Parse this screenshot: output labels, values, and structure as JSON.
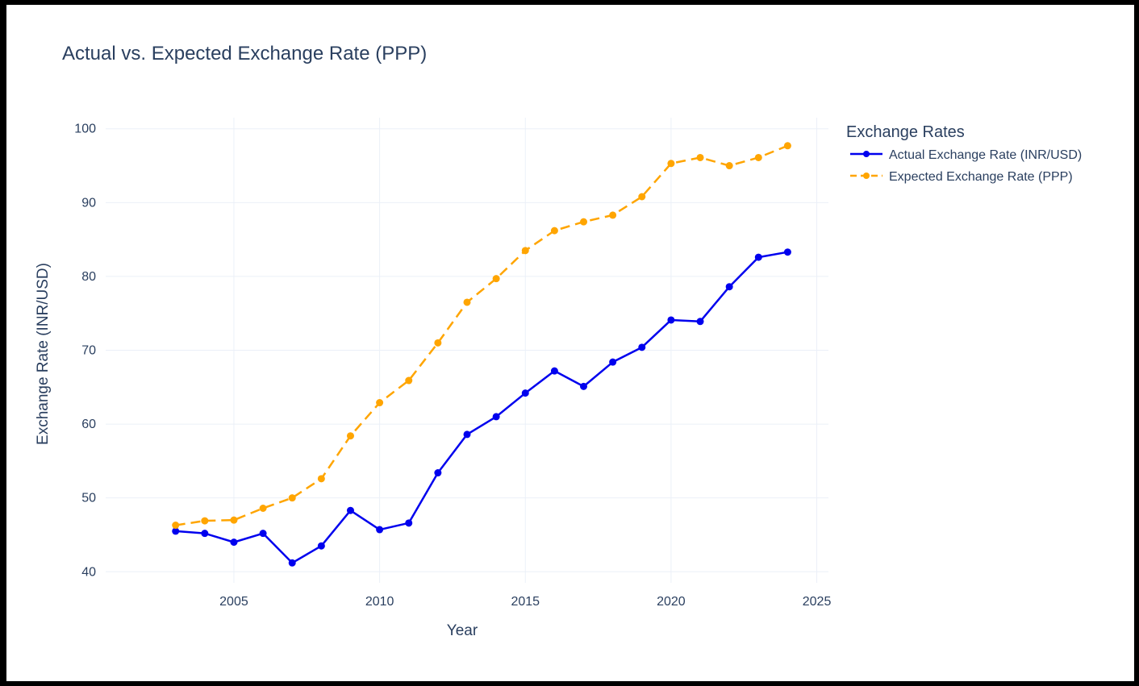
{
  "chart_data": {
    "type": "line",
    "title": "Actual vs. Expected Exchange Rate (PPP)",
    "xlabel": "Year",
    "ylabel": "Exchange Rate (INR/USD)",
    "x": [
      2003,
      2004,
      2005,
      2006,
      2007,
      2008,
      2009,
      2010,
      2011,
      2012,
      2013,
      2014,
      2015,
      2016,
      2017,
      2018,
      2019,
      2020,
      2021,
      2022,
      2023,
      2024
    ],
    "xlim": [
      2000.6,
      2025.4
    ],
    "ylim": [
      38.5,
      101.5
    ],
    "xticks": [
      2005,
      2010,
      2015,
      2020,
      2025
    ],
    "yticks": [
      40,
      50,
      60,
      70,
      80,
      90,
      100
    ],
    "xtick_labels": [
      "2005",
      "2010",
      "2015",
      "2020",
      "2025"
    ],
    "ytick_labels": [
      "40",
      "50",
      "60",
      "70",
      "80",
      "90",
      "100"
    ],
    "grid": true,
    "legend_title": "Exchange Rates",
    "legend_position": "top-right",
    "series": [
      {
        "name": "Actual Exchange Rate (INR/USD)",
        "color": "#0000ee",
        "style": "solid",
        "marker": "circle",
        "values": [
          45.5,
          45.2,
          44.0,
          45.2,
          41.2,
          43.5,
          48.3,
          45.7,
          46.6,
          53.4,
          58.6,
          61.0,
          64.2,
          67.2,
          65.1,
          68.4,
          70.4,
          74.1,
          73.9,
          78.6,
          82.6,
          83.3
        ]
      },
      {
        "name": "Expected Exchange Rate (PPP)",
        "color": "#ffa500",
        "style": "dash",
        "marker": "circle",
        "values": [
          46.3,
          46.9,
          47.0,
          48.6,
          50.0,
          52.6,
          58.4,
          62.9,
          65.9,
          71.0,
          76.5,
          79.7,
          83.5,
          86.2,
          87.4,
          88.3,
          90.8,
          95.3,
          96.1,
          95.0,
          96.1,
          97.7
        ]
      }
    ]
  }
}
